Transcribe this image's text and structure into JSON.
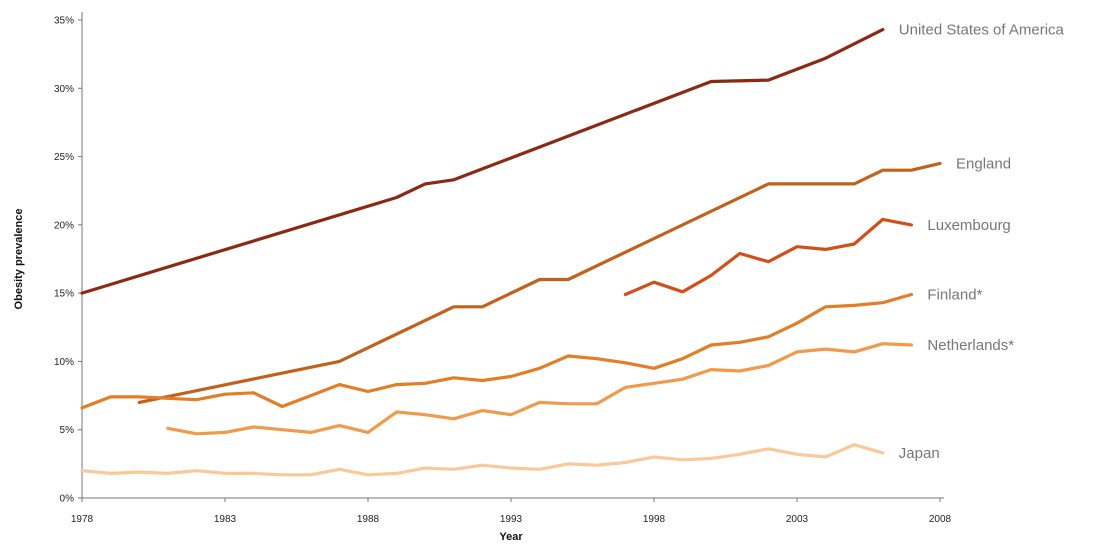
{
  "chart_data": {
    "type": "line",
    "xlabel": "Year",
    "ylabel": "Obesity prevalence",
    "xlim": [
      1978,
      2008
    ],
    "ylim": [
      0,
      35
    ],
    "x_ticks": [
      1978,
      1983,
      1988,
      1993,
      1998,
      2003,
      2008
    ],
    "y_ticks": [
      0,
      5,
      10,
      15,
      20,
      25,
      30,
      35
    ],
    "y_tick_labels": [
      "0%",
      "5%",
      "10%",
      "15%",
      "20%",
      "25%",
      "30%",
      "35%"
    ],
    "grid": false,
    "legend": "labels at end of lines",
    "series": [
      {
        "name": "United States of America",
        "color": "#8b2a14",
        "points": [
          [
            1978,
            15.0
          ],
          [
            1989,
            22.0
          ],
          [
            1990,
            23.0
          ],
          [
            1991,
            23.3
          ],
          [
            2000,
            30.5
          ],
          [
            2002,
            30.6
          ],
          [
            2004,
            32.2
          ],
          [
            2006,
            34.3
          ]
        ]
      },
      {
        "name": "England",
        "color": "#c1621c",
        "points": [
          [
            1980,
            7.0
          ],
          [
            1987,
            10.0
          ],
          [
            1991,
            14.0
          ],
          [
            1992,
            14.0
          ],
          [
            1994,
            16.0
          ],
          [
            1995,
            16.0
          ],
          [
            2002,
            23.0
          ],
          [
            2005,
            23.0
          ],
          [
            2006,
            24.0
          ],
          [
            2007,
            24.0
          ],
          [
            2008,
            24.5
          ]
        ]
      },
      {
        "name": "Luxembourg",
        "color": "#d44e1b",
        "points": [
          [
            1997,
            14.9
          ],
          [
            1998,
            15.8
          ],
          [
            1999,
            15.1
          ],
          [
            2000,
            16.3
          ],
          [
            2001,
            17.9
          ],
          [
            2002,
            17.3
          ],
          [
            2003,
            18.4
          ],
          [
            2004,
            18.2
          ],
          [
            2005,
            18.6
          ],
          [
            2006,
            20.4
          ],
          [
            2007,
            20.0
          ]
        ]
      },
      {
        "name": "Finland*",
        "color": "#e37d26",
        "points": [
          [
            1978,
            6.6
          ],
          [
            1979,
            7.4
          ],
          [
            1980,
            7.4
          ],
          [
            1981,
            7.3
          ],
          [
            1982,
            7.2
          ],
          [
            1983,
            7.6
          ],
          [
            1984,
            7.7
          ],
          [
            1985,
            6.7
          ],
          [
            1986,
            7.5
          ],
          [
            1987,
            8.3
          ],
          [
            1988,
            7.8
          ],
          [
            1989,
            8.3
          ],
          [
            1990,
            8.4
          ],
          [
            1991,
            8.8
          ],
          [
            1992,
            8.6
          ],
          [
            1993,
            8.9
          ],
          [
            1994,
            9.5
          ],
          [
            1995,
            10.4
          ],
          [
            1996,
            10.2
          ],
          [
            1997,
            9.9
          ],
          [
            1998,
            9.5
          ],
          [
            1999,
            10.2
          ],
          [
            2000,
            11.2
          ],
          [
            2001,
            11.4
          ],
          [
            2002,
            11.8
          ],
          [
            2003,
            12.8
          ],
          [
            2004,
            14.0
          ],
          [
            2005,
            14.1
          ],
          [
            2006,
            14.3
          ],
          [
            2007,
            14.9
          ]
        ]
      },
      {
        "name": "Netherlands*",
        "color": "#f09a4c",
        "points": [
          [
            1981,
            5.1
          ],
          [
            1982,
            4.7
          ],
          [
            1983,
            4.8
          ],
          [
            1984,
            5.2
          ],
          [
            1985,
            5.0
          ],
          [
            1986,
            4.8
          ],
          [
            1987,
            5.3
          ],
          [
            1988,
            4.8
          ],
          [
            1989,
            6.3
          ],
          [
            1990,
            6.1
          ],
          [
            1991,
            5.8
          ],
          [
            1992,
            6.4
          ],
          [
            1993,
            6.1
          ],
          [
            1994,
            7.0
          ],
          [
            1995,
            6.9
          ],
          [
            1996,
            6.9
          ],
          [
            1997,
            8.1
          ],
          [
            1998,
            8.4
          ],
          [
            1999,
            8.7
          ],
          [
            2000,
            9.4
          ],
          [
            2001,
            9.3
          ],
          [
            2002,
            9.7
          ],
          [
            2003,
            10.7
          ],
          [
            2004,
            10.9
          ],
          [
            2005,
            10.7
          ],
          [
            2006,
            11.3
          ],
          [
            2007,
            11.2
          ]
        ]
      },
      {
        "name": "Japan",
        "color": "#f9c99a",
        "points": [
          [
            1978,
            2.0
          ],
          [
            1979,
            1.8
          ],
          [
            1980,
            1.9
          ],
          [
            1981,
            1.8
          ],
          [
            1982,
            2.0
          ],
          [
            1983,
            1.8
          ],
          [
            1984,
            1.8
          ],
          [
            1985,
            1.7
          ],
          [
            1986,
            1.7
          ],
          [
            1987,
            2.1
          ],
          [
            1988,
            1.7
          ],
          [
            1989,
            1.8
          ],
          [
            1990,
            2.2
          ],
          [
            1991,
            2.1
          ],
          [
            1992,
            2.4
          ],
          [
            1993,
            2.2
          ],
          [
            1994,
            2.1
          ],
          [
            1995,
            2.5
          ],
          [
            1996,
            2.4
          ],
          [
            1997,
            2.6
          ],
          [
            1998,
            3.0
          ],
          [
            1999,
            2.8
          ],
          [
            2000,
            2.9
          ],
          [
            2001,
            3.2
          ],
          [
            2002,
            3.6
          ],
          [
            2003,
            3.2
          ],
          [
            2004,
            3.0
          ],
          [
            2005,
            3.9
          ],
          [
            2006,
            3.3
          ]
        ]
      }
    ]
  }
}
